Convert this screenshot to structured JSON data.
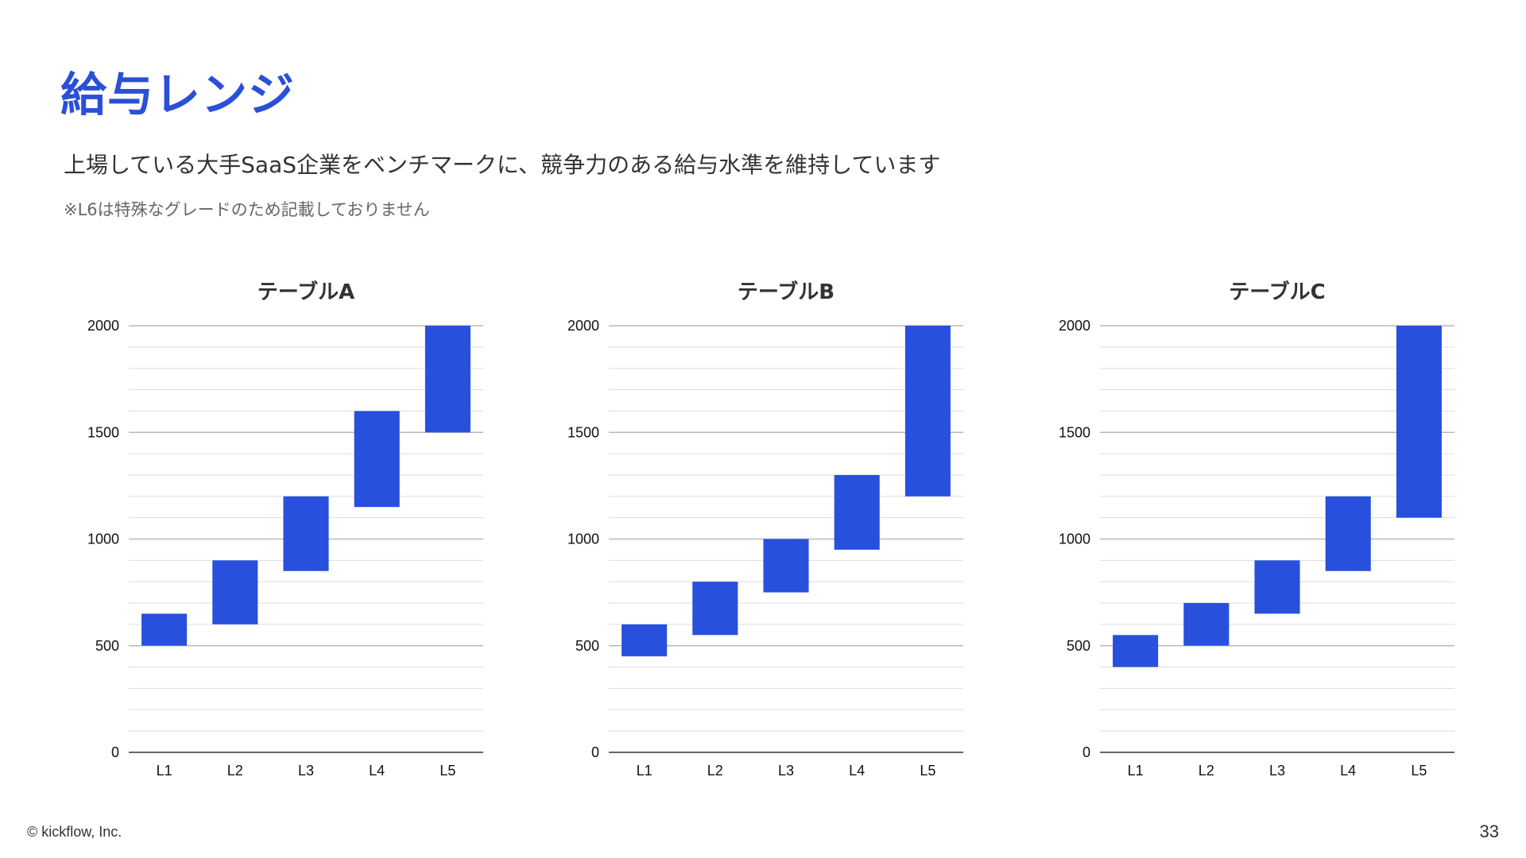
{
  "page": {
    "title": "給与レンジ",
    "subtitle": "上場している大手SaaS企業をベンチマークに、競争力のある給与水準を維持しています",
    "note": "※L6は特殊なグレードのため記載しておりません",
    "copyright": "© kickflow, Inc.",
    "page_number": "33"
  },
  "colors": {
    "title": "#2b4fd6",
    "bar": "#2850dc",
    "grid_major": "#b9b9b9",
    "grid_minor": "#dddddd",
    "axis": "#333333"
  },
  "chart_data": [
    {
      "type": "bar",
      "title": "テーブルA",
      "categories": [
        "L1",
        "L2",
        "L3",
        "L4",
        "L5"
      ],
      "series": [
        {
          "ranges": [
            [
              500,
              650
            ],
            [
              600,
              900
            ],
            [
              850,
              1200
            ],
            [
              1150,
              1600
            ],
            [
              1500,
              2000
            ]
          ]
        }
      ],
      "ylim": [
        0,
        2000
      ],
      "yticks": [
        0,
        500,
        1000,
        1500,
        2000
      ],
      "grid": true
    },
    {
      "type": "bar",
      "title": "テーブルB",
      "categories": [
        "L1",
        "L2",
        "L3",
        "L4",
        "L5"
      ],
      "series": [
        {
          "ranges": [
            [
              450,
              600
            ],
            [
              550,
              800
            ],
            [
              750,
              1000
            ],
            [
              950,
              1300
            ],
            [
              1200,
              2000
            ]
          ]
        }
      ],
      "ylim": [
        0,
        2000
      ],
      "yticks": [
        0,
        500,
        1000,
        1500,
        2000
      ],
      "grid": true
    },
    {
      "type": "bar",
      "title": "テーブルC",
      "categories": [
        "L1",
        "L2",
        "L3",
        "L4",
        "L5"
      ],
      "series": [
        {
          "ranges": [
            [
              400,
              550
            ],
            [
              500,
              700
            ],
            [
              650,
              900
            ],
            [
              850,
              1200
            ],
            [
              1100,
              2000
            ]
          ]
        }
      ],
      "ylim": [
        0,
        2000
      ],
      "yticks": [
        0,
        500,
        1000,
        1500,
        2000
      ],
      "grid": true
    }
  ]
}
